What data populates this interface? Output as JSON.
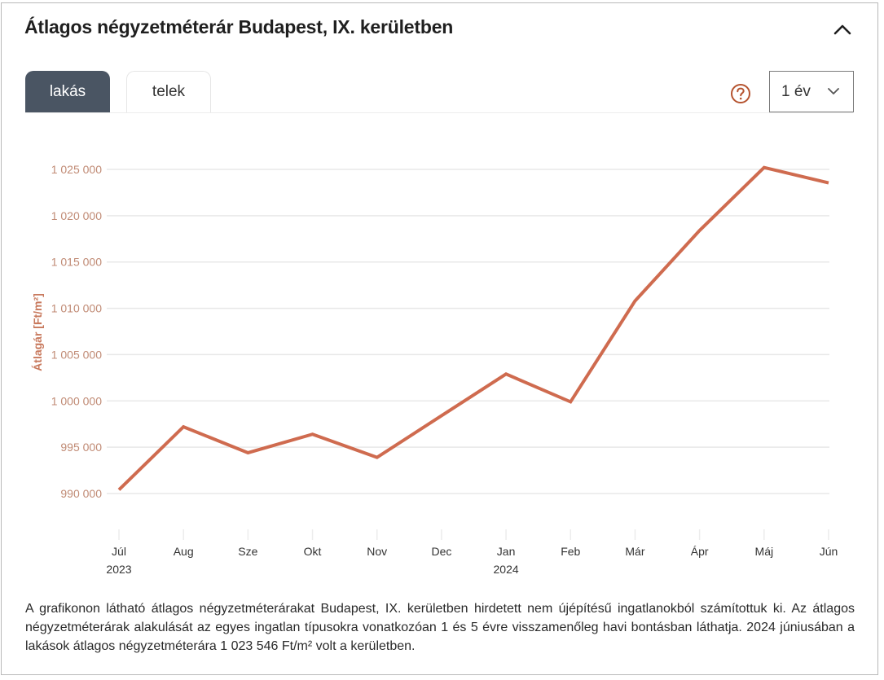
{
  "header": {
    "title": "Átlagos négyzetméterár Budapest, IX. kerületben",
    "collapse_icon": "chevron-up-icon"
  },
  "tabs": [
    {
      "label": "lakás",
      "active": true
    },
    {
      "label": "telek",
      "active": false
    }
  ],
  "controls": {
    "help_icon": "question-circle-icon",
    "period_select": {
      "value": "1 év",
      "icon": "chevron-down-icon"
    }
  },
  "colors": {
    "accent": "#cf6b4f",
    "axis_text": "#c08a74",
    "active_tab": "#4a5563",
    "gridline": "#e8e8e8"
  },
  "chart_data": {
    "type": "line",
    "title": "",
    "xlabel": "",
    "ylabel": "Átlagár [Ft/m²]",
    "grid": true,
    "legend": "none",
    "categories": [
      "Júl",
      "Aug",
      "Sze",
      "Okt",
      "Nov",
      "Dec",
      "Jan",
      "Feb",
      "Már",
      "Ápr",
      "Máj",
      "Jún"
    ],
    "year_labels": {
      "Júl": "2023",
      "Jan": "2024"
    },
    "series": [
      {
        "name": "lakás",
        "values": [
          990400,
          997200,
          994400,
          996400,
          993900,
          998400,
          1002900,
          999900,
          1010800,
          1018400,
          1025200,
          1023546
        ]
      }
    ],
    "yticks": [
      990000,
      995000,
      1000000,
      1005000,
      1010000,
      1015000,
      1020000,
      1025000
    ],
    "ytick_labels": [
      "990 000",
      "995 000",
      "1 000 000",
      "1 005 000",
      "1 010 000",
      "1 015 000",
      "1 020 000",
      "1 025 000"
    ],
    "ylim": [
      990000,
      1025000
    ]
  },
  "description": "A grafikonon látható átlagos négyzetméterárakat Budapest, IX. kerületben hirdetett nem újépítésű ingatlanokból számítottuk ki. Az átlagos négyzetméterárak alakulását az egyes ingatlan típusokra vonatkozóan 1 és 5 évre visszamenőleg havi bontásban láthatja. 2024 júniusában a lakások átlagos négyzetméterára 1 023 546 Ft/m² volt a kerületben."
}
